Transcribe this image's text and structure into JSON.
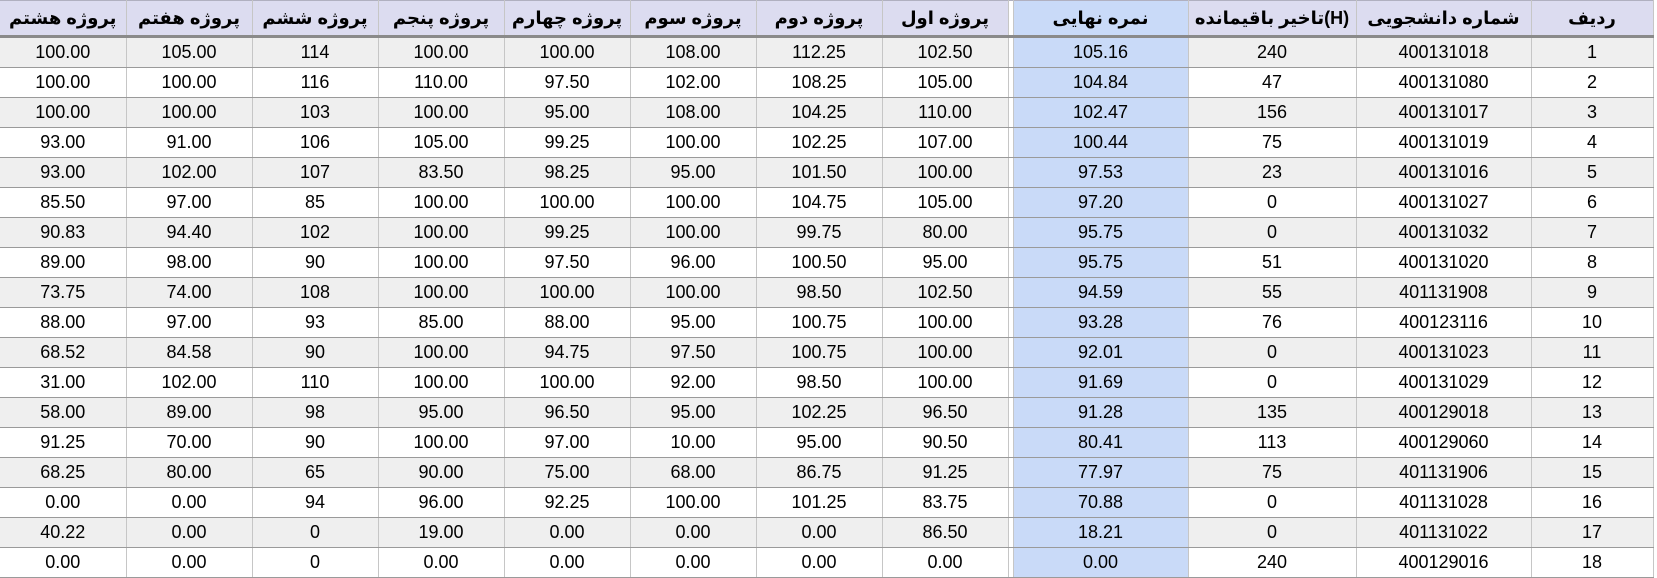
{
  "headers": [
    "پروژه هشتم",
    "پروژه هفتم",
    "پروژه ششم",
    "پروژه پنجم",
    "پروژه چهارم",
    "پروژه سوم",
    "پروژه دوم",
    "پروژه اول",
    "نمره نهایی",
    "تاخیر باقیمانده(H)",
    "شماره دانشجویی",
    "ردیف"
  ],
  "rows": [
    [
      "100.00",
      "105.00",
      "114",
      "100.00",
      "100.00",
      "108.00",
      "112.25",
      "102.50",
      "105.16",
      "240",
      "400131018",
      "1"
    ],
    [
      "100.00",
      "100.00",
      "116",
      "110.00",
      "97.50",
      "102.00",
      "108.25",
      "105.00",
      "104.84",
      "47",
      "400131080",
      "2"
    ],
    [
      "100.00",
      "100.00",
      "103",
      "100.00",
      "95.00",
      "108.00",
      "104.25",
      "110.00",
      "102.47",
      "156",
      "400131017",
      "3"
    ],
    [
      "93.00",
      "91.00",
      "106",
      "105.00",
      "99.25",
      "100.00",
      "102.25",
      "107.00",
      "100.44",
      "75",
      "400131019",
      "4"
    ],
    [
      "93.00",
      "102.00",
      "107",
      "83.50",
      "98.25",
      "95.00",
      "101.50",
      "100.00",
      "97.53",
      "23",
      "400131016",
      "5"
    ],
    [
      "85.50",
      "97.00",
      "85",
      "100.00",
      "100.00",
      "100.00",
      "104.75",
      "105.00",
      "97.20",
      "0",
      "400131027",
      "6"
    ],
    [
      "90.83",
      "94.40",
      "102",
      "100.00",
      "99.25",
      "100.00",
      "99.75",
      "80.00",
      "95.75",
      "0",
      "400131032",
      "7"
    ],
    [
      "89.00",
      "98.00",
      "90",
      "100.00",
      "97.50",
      "96.00",
      "100.50",
      "95.00",
      "95.75",
      "51",
      "400131020",
      "8"
    ],
    [
      "73.75",
      "74.00",
      "108",
      "100.00",
      "100.00",
      "100.00",
      "98.50",
      "102.50",
      "94.59",
      "55",
      "401131908",
      "9"
    ],
    [
      "88.00",
      "97.00",
      "93",
      "85.00",
      "88.00",
      "95.00",
      "100.75",
      "100.00",
      "93.28",
      "76",
      "400123116",
      "10"
    ],
    [
      "68.52",
      "84.58",
      "90",
      "100.00",
      "94.75",
      "97.50",
      "100.75",
      "100.00",
      "92.01",
      "0",
      "400131023",
      "11"
    ],
    [
      "31.00",
      "102.00",
      "110",
      "100.00",
      "100.00",
      "92.00",
      "98.50",
      "100.00",
      "91.69",
      "0",
      "400131029",
      "12"
    ],
    [
      "58.00",
      "89.00",
      "98",
      "95.00",
      "96.50",
      "95.00",
      "102.25",
      "96.50",
      "91.28",
      "135",
      "400129018",
      "13"
    ],
    [
      "91.25",
      "70.00",
      "90",
      "100.00",
      "97.00",
      "10.00",
      "95.00",
      "90.50",
      "80.41",
      "113",
      "400129060",
      "14"
    ],
    [
      "68.25",
      "80.00",
      "65",
      "90.00",
      "75.00",
      "68.00",
      "86.75",
      "91.25",
      "77.97",
      "75",
      "401131906",
      "15"
    ],
    [
      "0.00",
      "0.00",
      "94",
      "96.00",
      "92.25",
      "100.00",
      "101.25",
      "83.75",
      "70.88",
      "0",
      "401131028",
      "16"
    ],
    [
      "40.22",
      "0.00",
      "0",
      "19.00",
      "0.00",
      "0.00",
      "0.00",
      "86.50",
      "18.21",
      "0",
      "401131022",
      "17"
    ],
    [
      "0.00",
      "0.00",
      "0",
      "0.00",
      "0.00",
      "0.00",
      "0.00",
      "0.00",
      "0.00",
      "240",
      "400129016",
      "18"
    ]
  ]
}
